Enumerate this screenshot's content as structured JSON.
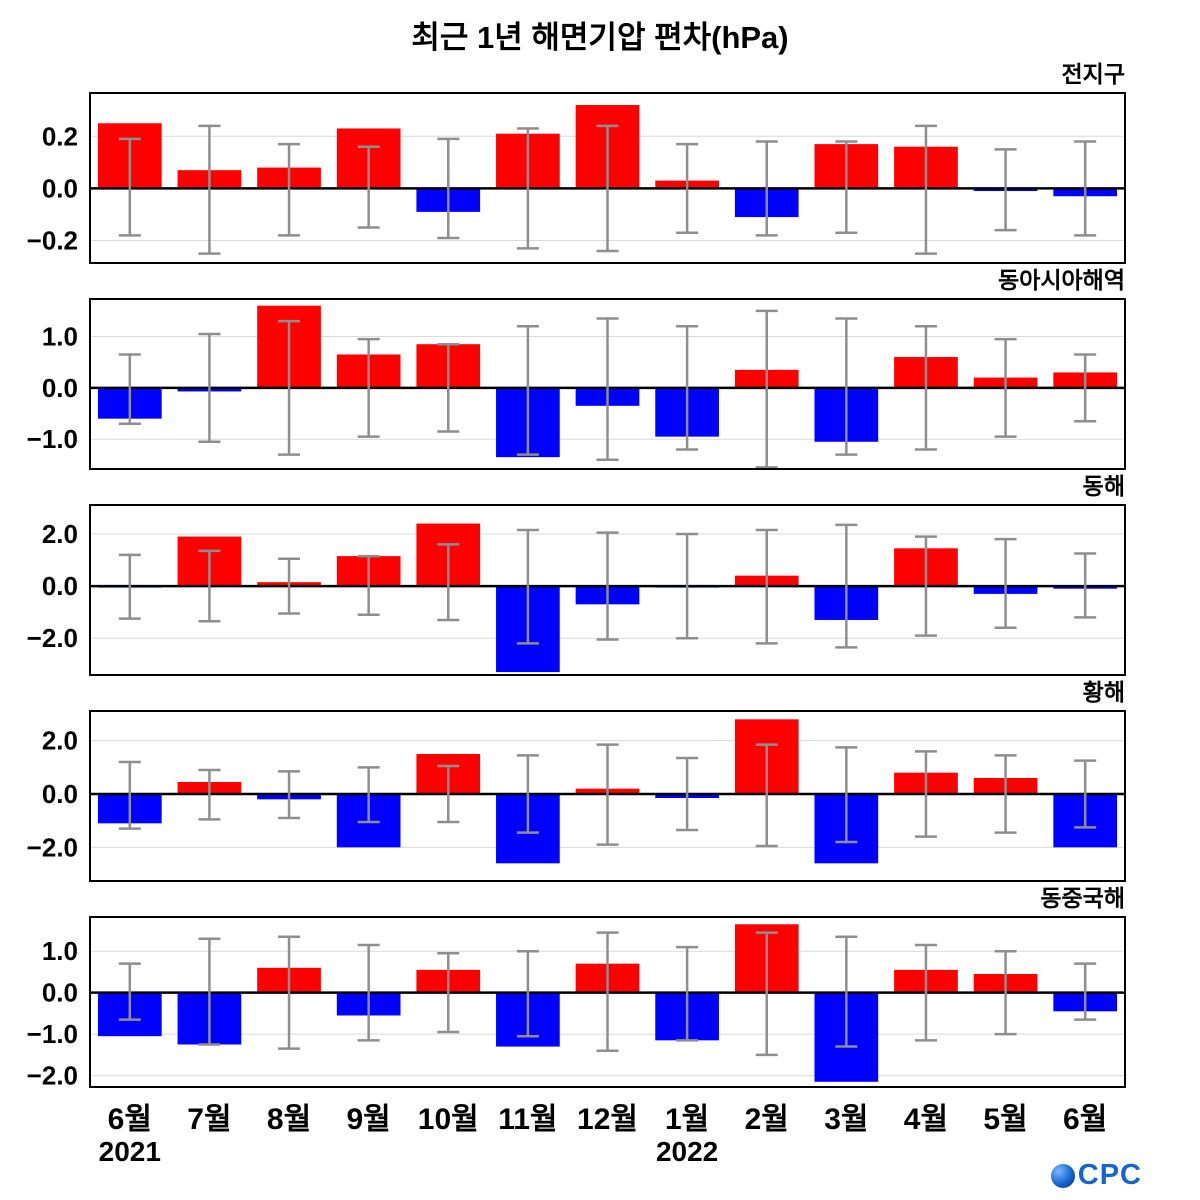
{
  "title": "최근 1년 해면기압 편차(hPa)",
  "logo": {
    "text": "CPC",
    "icon": "ocpc-globe-icon"
  },
  "chart_data": {
    "type": "bar",
    "title": "최근 1년 해면기압 편차(hPa)",
    "unit": "hPa",
    "grid": true,
    "categories": [
      "6월",
      "7월",
      "8월",
      "9월",
      "10월",
      "11월",
      "12월",
      "1월",
      "2월",
      "3월",
      "4월",
      "5월",
      "6월"
    ],
    "year_labels": [
      {
        "text": "2021",
        "month_index": 0
      },
      {
        "text": "2022",
        "month_index": 7
      }
    ],
    "bar_colors": {
      "positive": "#ff0000",
      "negative": "#0000ff"
    },
    "errorbar_color": "#8e8e8e",
    "panels": [
      {
        "label": "전지구",
        "ylim": [
          -0.29,
          0.37
        ],
        "yticks": [
          0.2,
          0.0,
          -0.2
        ],
        "values": [
          0.25,
          0.07,
          0.08,
          0.23,
          -0.09,
          0.21,
          0.32,
          0.03,
          -0.11,
          0.17,
          0.16,
          -0.01,
          -0.03
        ],
        "err_low": [
          -0.18,
          -0.25,
          -0.18,
          -0.15,
          -0.19,
          -0.23,
          -0.24,
          -0.17,
          -0.18,
          -0.17,
          -0.25,
          -0.16,
          -0.18
        ],
        "err_high": [
          0.19,
          0.24,
          0.17,
          0.16,
          0.19,
          0.23,
          0.24,
          0.17,
          0.18,
          0.18,
          0.24,
          0.15,
          0.18
        ]
      },
      {
        "label": "동아시아해역",
        "ylim": [
          -1.6,
          1.75
        ],
        "yticks": [
          1.0,
          0.0,
          -1.0
        ],
        "values": [
          -0.6,
          -0.07,
          1.6,
          0.65,
          0.85,
          -1.35,
          -0.35,
          -0.95,
          0.35,
          -1.05,
          0.6,
          0.2,
          0.3
        ],
        "err_low": [
          -0.7,
          -1.05,
          -1.3,
          -0.95,
          -0.85,
          -1.3,
          -1.4,
          -1.2,
          -1.55,
          -1.3,
          -1.2,
          -0.95,
          -0.65
        ],
        "err_high": [
          0.65,
          1.05,
          1.3,
          0.95,
          0.85,
          1.2,
          1.35,
          1.2,
          1.5,
          1.35,
          1.2,
          0.95,
          0.65
        ]
      },
      {
        "label": "동해",
        "ylim": [
          -3.45,
          3.15
        ],
        "yticks": [
          2.0,
          0.0,
          -2.0
        ],
        "values": [
          -0.05,
          1.9,
          0.15,
          1.15,
          2.4,
          -3.3,
          -0.7,
          -0.05,
          0.4,
          -1.3,
          1.45,
          -0.3,
          -0.1
        ],
        "err_low": [
          -1.25,
          -1.35,
          -1.05,
          -1.1,
          -1.3,
          -2.2,
          -2.05,
          -2.0,
          -2.2,
          -2.35,
          -1.9,
          -1.6,
          -1.2
        ],
        "err_high": [
          1.2,
          1.35,
          1.05,
          1.15,
          1.6,
          2.15,
          2.05,
          2.0,
          2.15,
          2.35,
          1.9,
          1.8,
          1.25
        ]
      },
      {
        "label": "황해",
        "ylim": [
          -3.3,
          3.15
        ],
        "yticks": [
          2.0,
          0.0,
          -2.0
        ],
        "values": [
          -1.1,
          0.45,
          -0.2,
          -2.0,
          1.5,
          -2.6,
          0.2,
          -0.15,
          2.8,
          -2.6,
          0.8,
          0.6,
          -2.0
        ],
        "err_low": [
          -1.3,
          -0.95,
          -0.9,
          -1.05,
          -1.05,
          -1.45,
          -1.9,
          -1.35,
          -1.95,
          -1.8,
          -1.6,
          -1.45,
          -1.25
        ],
        "err_high": [
          1.2,
          0.9,
          0.85,
          1.0,
          1.05,
          1.45,
          1.85,
          1.35,
          1.85,
          1.75,
          1.6,
          1.45,
          1.25
        ]
      },
      {
        "label": "동중국해",
        "ylim": [
          -2.3,
          1.85
        ],
        "yticks": [
          1.0,
          0.0,
          -1.0,
          -2.0
        ],
        "values": [
          -1.05,
          -1.25,
          0.6,
          -0.55,
          0.55,
          -1.3,
          0.7,
          -1.15,
          1.65,
          -2.15,
          0.55,
          0.45,
          -0.45
        ],
        "err_low": [
          -0.65,
          -1.25,
          -1.35,
          -1.15,
          -0.95,
          -1.05,
          -1.4,
          -1.15,
          -1.5,
          -1.3,
          -1.15,
          -1.0,
          -0.65
        ],
        "err_high": [
          0.7,
          1.3,
          1.35,
          1.15,
          0.95,
          1.0,
          1.45,
          1.1,
          1.45,
          1.35,
          1.15,
          1.0,
          0.7
        ]
      }
    ]
  }
}
